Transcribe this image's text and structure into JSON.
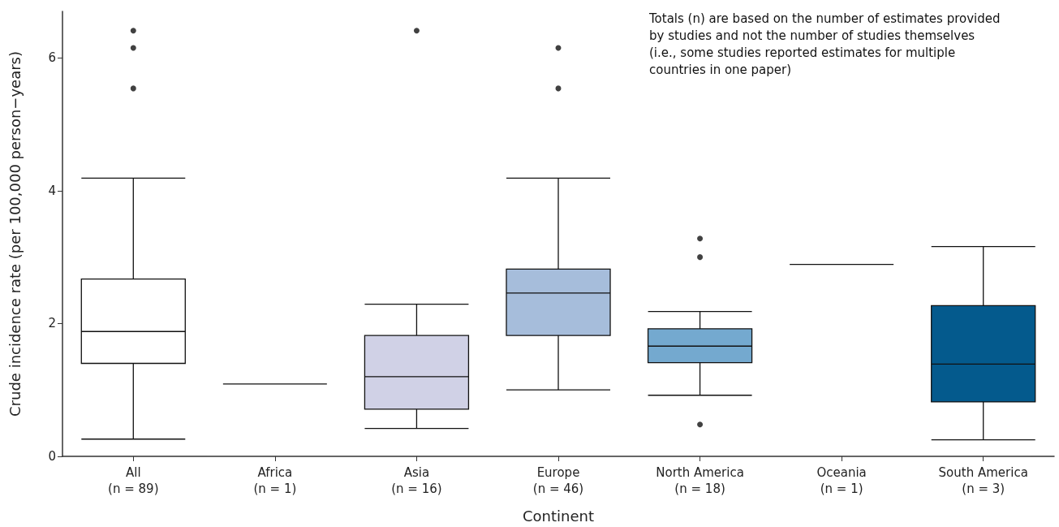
{
  "chart_data": {
    "type": "box",
    "categories": [
      "All\n(n = 89)",
      "Africa\n(n = 1)",
      "Asia\n(n = 16)",
      "Europe\n(n = 46)",
      "North America\n(n = 18)",
      "Oceania\n(n = 1)",
      "South America\n(n = 3)"
    ],
    "boxes": [
      {
        "low": 0.26,
        "q1": 1.4,
        "median": 1.88,
        "q3": 2.67,
        "high": 4.19,
        "outliers": [
          6.41,
          6.15,
          5.54
        ]
      },
      {
        "low": 1.09,
        "q1": 1.09,
        "median": 1.09,
        "q3": 1.09,
        "high": 1.09
      },
      {
        "low": 0.42,
        "q1": 0.71,
        "median": 1.2,
        "q3": 1.82,
        "high": 2.29,
        "outliers": [
          6.41
        ]
      },
      {
        "low": 1.0,
        "q1": 1.82,
        "median": 2.46,
        "q3": 2.82,
        "high": 4.19,
        "outliers": [
          6.15,
          5.54
        ]
      },
      {
        "low": 0.92,
        "q1": 1.41,
        "median": 1.66,
        "q3": 1.92,
        "high": 2.18,
        "outliers": [
          3.28,
          3.0,
          0.48
        ]
      },
      {
        "low": 2.89,
        "q1": 2.89,
        "median": 2.89,
        "q3": 2.89,
        "high": 2.89
      },
      {
        "low": 0.25,
        "q1": 0.82,
        "median": 1.39,
        "q3": 2.27,
        "high": 3.16
      }
    ],
    "colors": [
      "#ffffff",
      "#111111",
      "#d0d1e6",
      "#a6bddb",
      "#74a9cf",
      "#111111",
      "#045a8d"
    ],
    "xlabel": "Continent",
    "ylabel": "Crude incidence rate (per 100,000 person−years)",
    "ylim": [
      0,
      6.7
    ],
    "yticks": [
      0,
      2,
      4,
      6
    ],
    "grid": false,
    "annotations": [
      "Totals (n) are based on the number of estimates provided\nby studies and not the number of studies themselves\n(i.e., some studies reported estimates for multiple\ncountries in one paper)"
    ]
  }
}
